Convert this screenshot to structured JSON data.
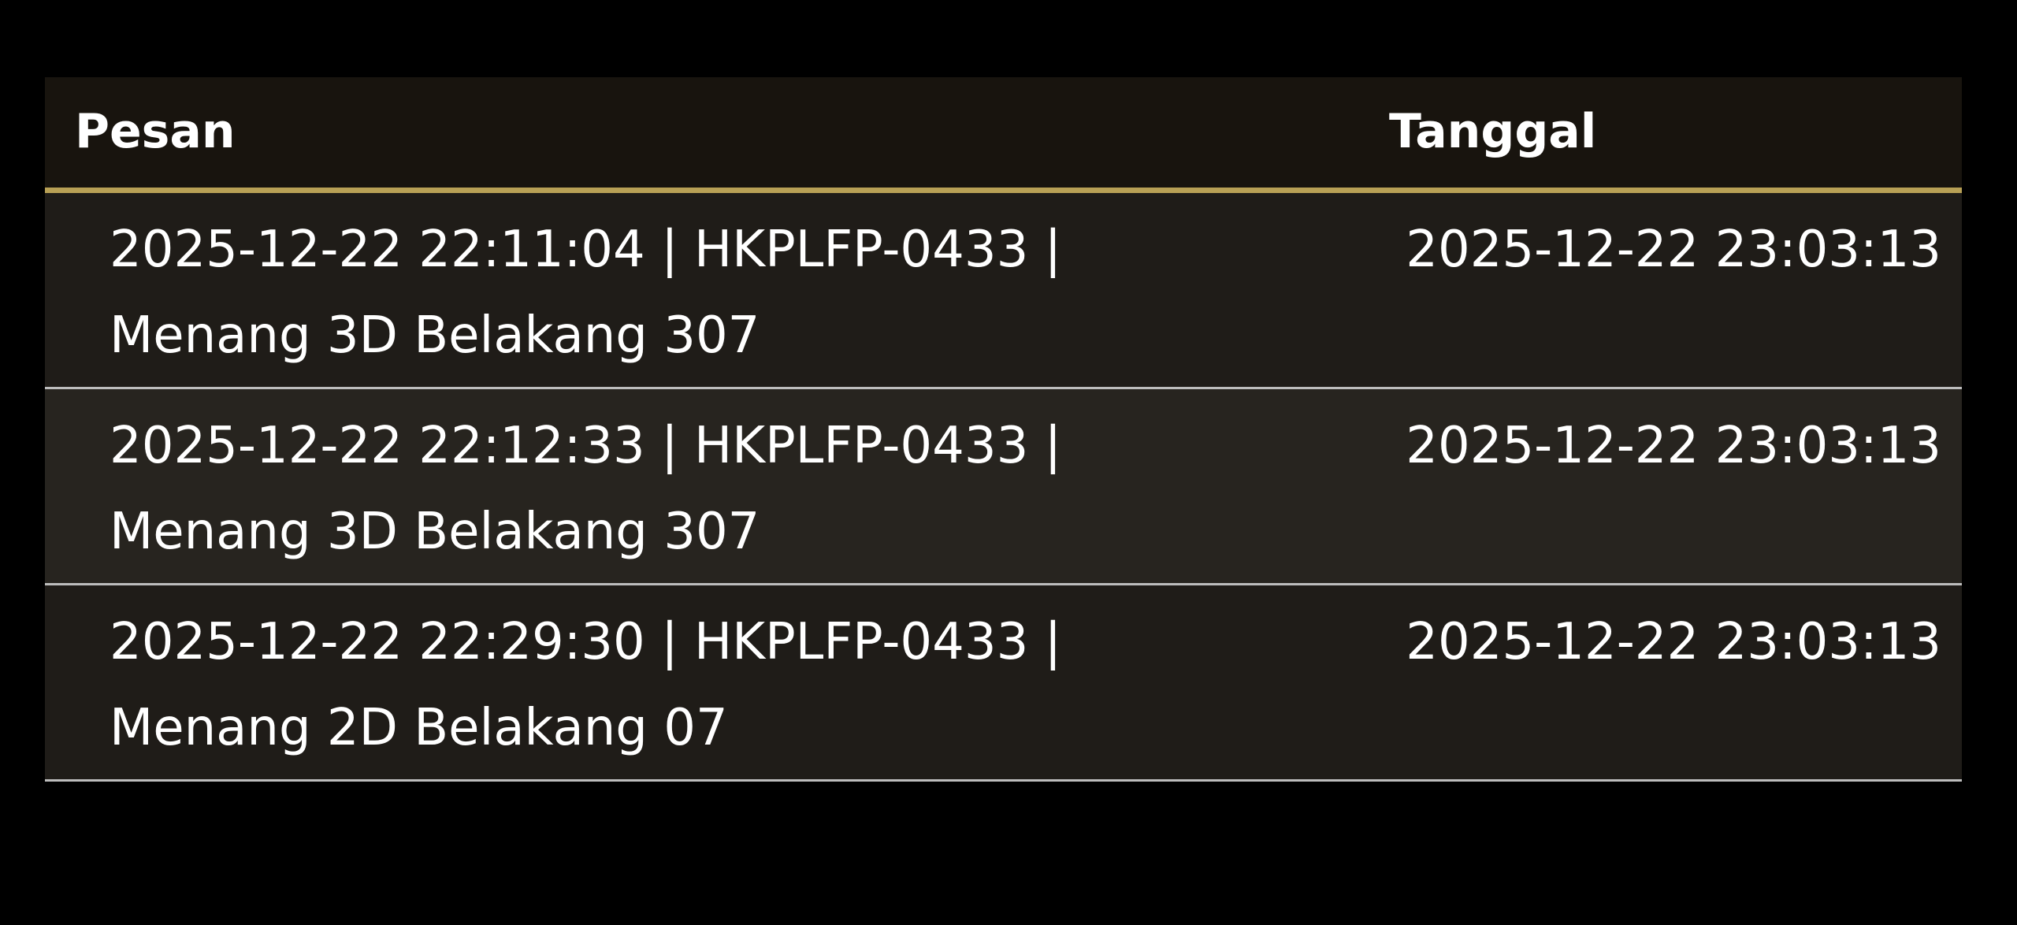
{
  "table": {
    "headers": {
      "message": "Pesan",
      "date": "Tanggal"
    },
    "rows": [
      {
        "line1": "2025-12-22 22:11:04 | HKPLFP-0433 |",
        "line2": "Menang 3D Belakang 307",
        "date": "2025-12-22 23:03:13"
      },
      {
        "line1": "2025-12-22 22:12:33 | HKPLFP-0433 |",
        "line2": "Menang 3D Belakang 307",
        "date": "2025-12-22 23:03:13"
      },
      {
        "line1": "2025-12-22 22:29:30 | HKPLFP-0433 |",
        "line2": "Menang 2D Belakang 07",
        "date": "2025-12-22 23:03:13"
      }
    ]
  },
  "colors": {
    "accent": "#b8a055",
    "header_bg": "#18140e",
    "row_bg": "#27241f"
  }
}
